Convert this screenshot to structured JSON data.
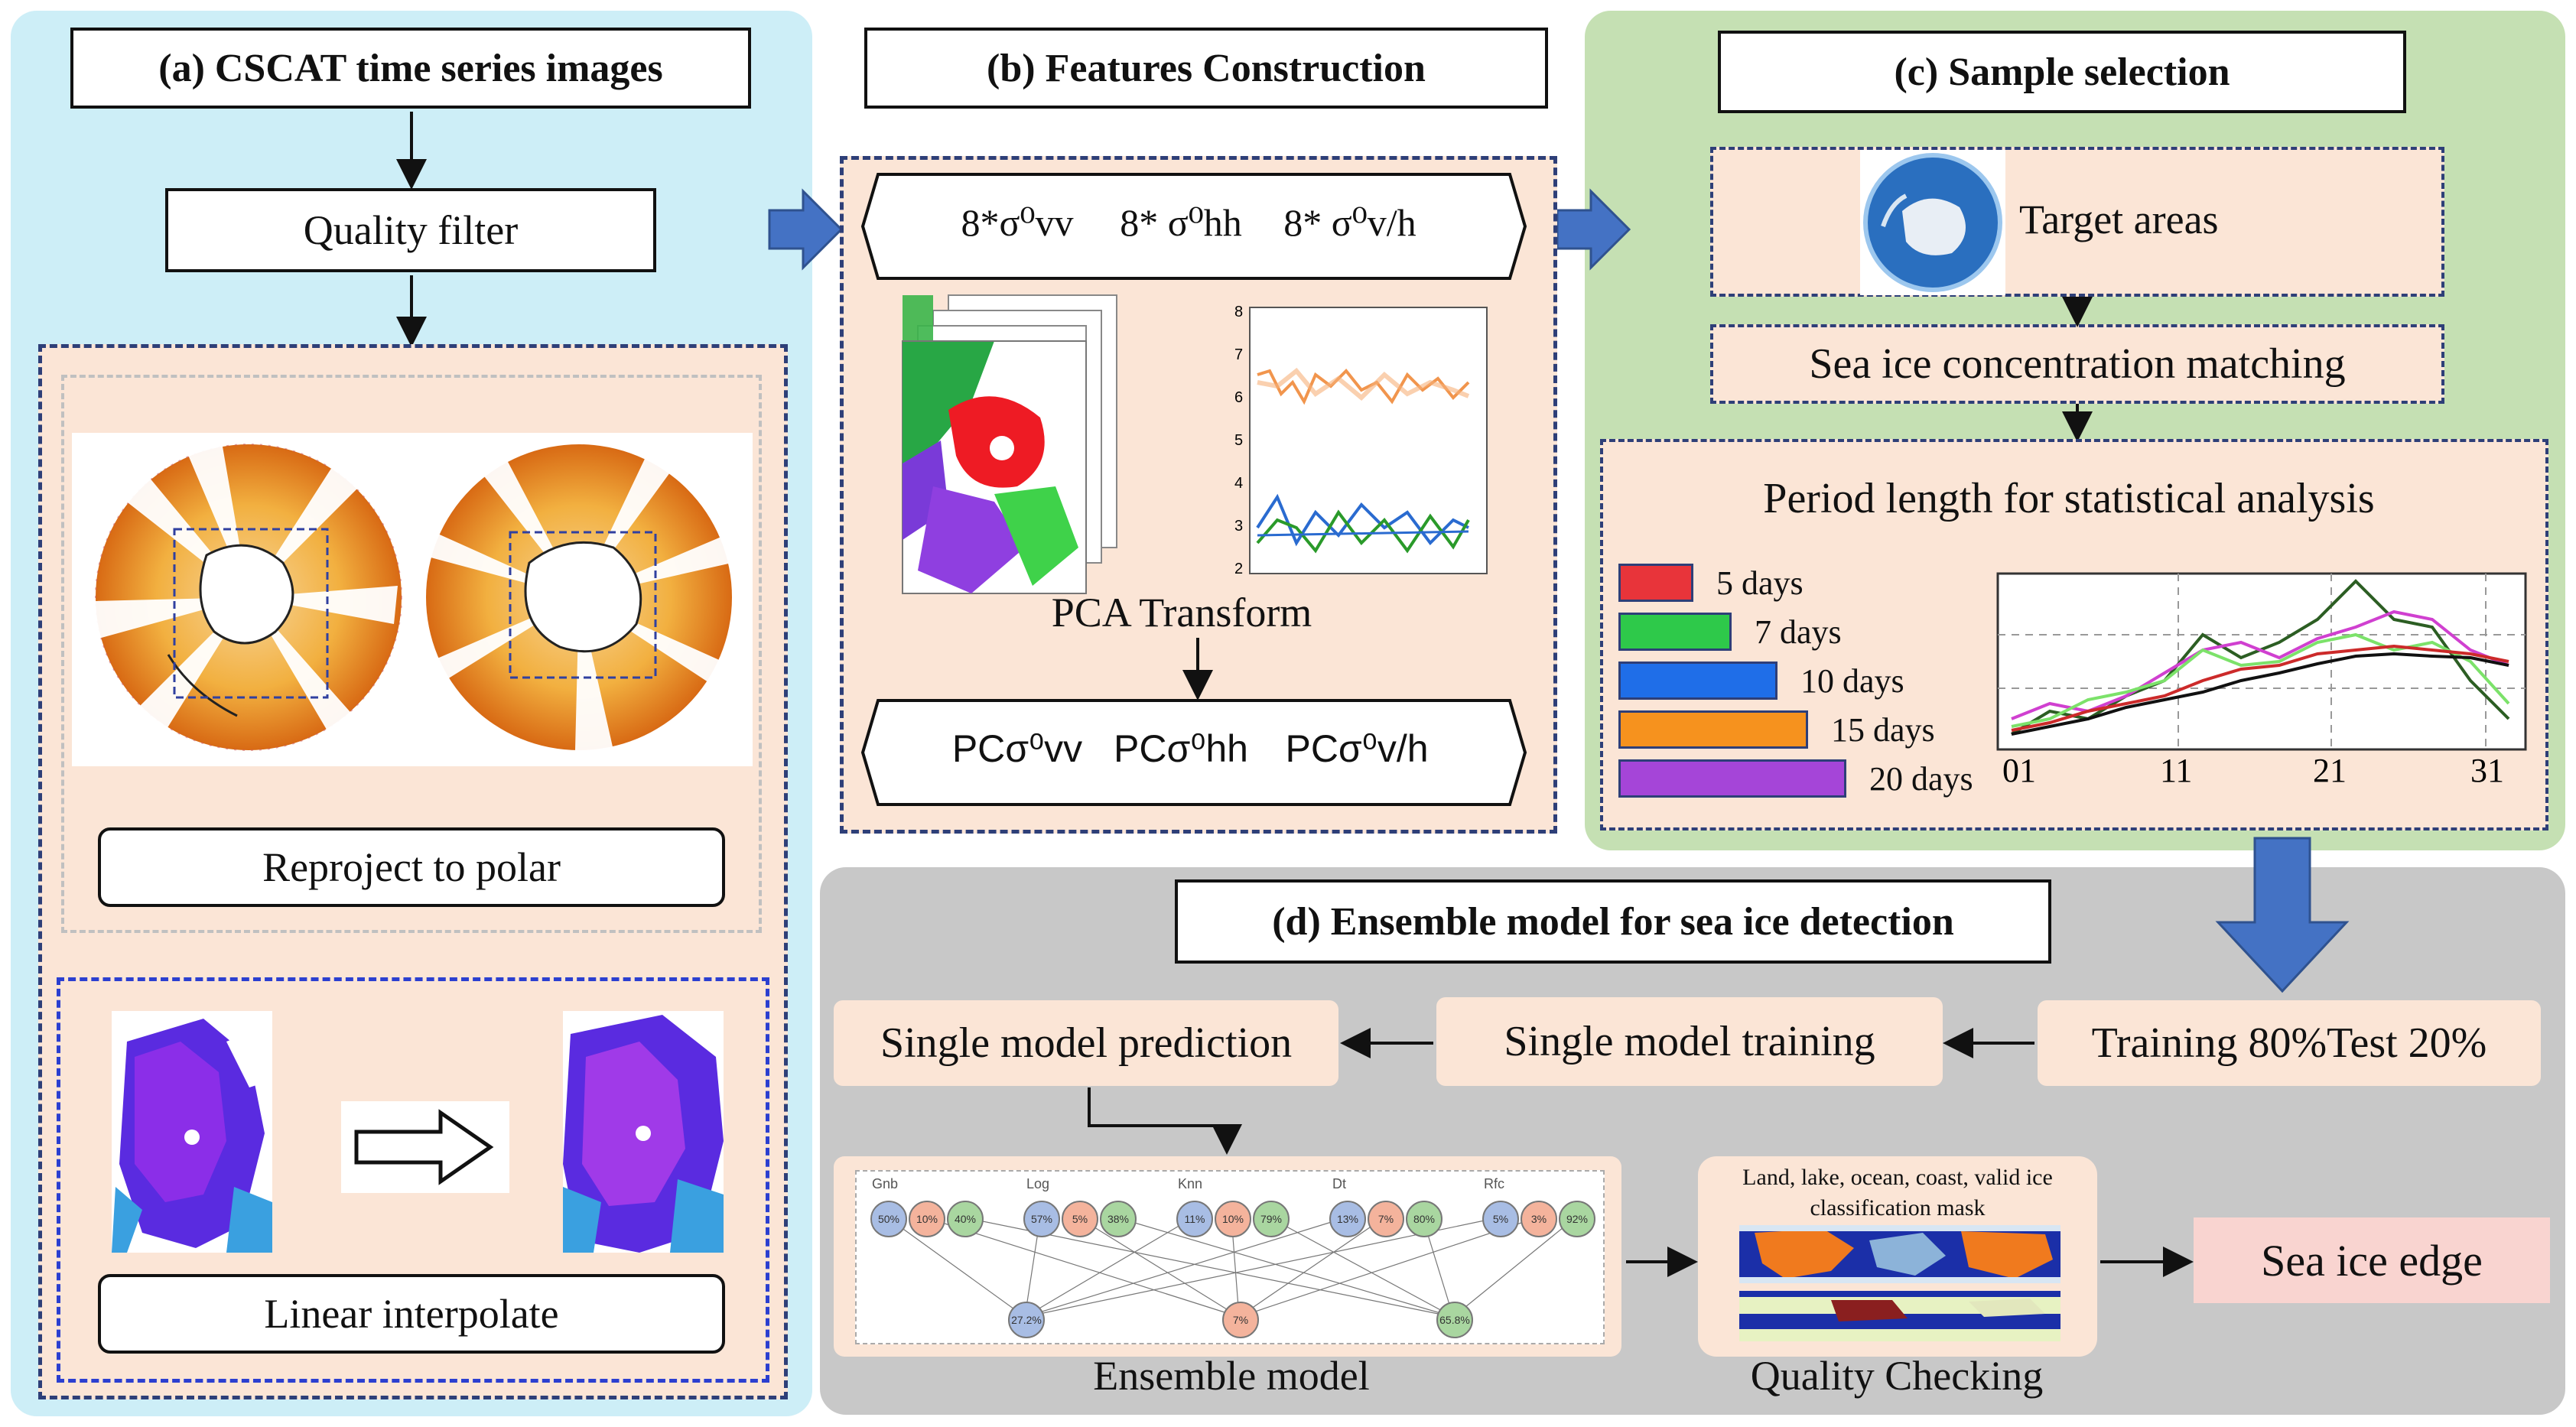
{
  "panel_a": {
    "title": "(a) CSCAT time series images",
    "quality_filter": "Quality filter",
    "reproject": "Reproject to polar",
    "linear_interp": "Linear interpolate"
  },
  "panel_b": {
    "title": "(b) Features Construction",
    "features_top": [
      "8*σ⁰vv",
      "8* σ⁰hh",
      "8* σ⁰v/h"
    ],
    "features_bottom": [
      "PCσ⁰vv",
      "PCσ⁰hh",
      "PCσ⁰v/h"
    ],
    "pca_label": "PCA Transform",
    "plot_yticks": [
      "8",
      "7",
      "6",
      "5",
      "4",
      "3",
      "2"
    ]
  },
  "panel_c": {
    "title": "(c) Sample selection",
    "target_areas": "Target areas",
    "sic_matching": "Sea ice concentration matching",
    "period_title": "Period length for statistical analysis",
    "legend": [
      {
        "label": "5 days",
        "color": "#e8343a"
      },
      {
        "label": "7 days",
        "color": "#2ec94a"
      },
      {
        "label": "10 days",
        "color": "#1f6ee8"
      },
      {
        "label": "15 days",
        "color": "#f6921e"
      },
      {
        "label": "20 days",
        "color": "#a545d8"
      }
    ],
    "x_ticks": [
      "01",
      "11",
      "21",
      "31"
    ]
  },
  "panel_d": {
    "title": "(d) Ensemble model for sea ice detection",
    "split": "Training 80%Test 20%",
    "training": "Single model training",
    "prediction": "Single model prediction",
    "ensemble_label": "Ensemble model",
    "qc_label": "Quality Checking",
    "mask_title": "Land, lake, ocean, coast, valid ice classification mask",
    "sea_ice_edge": "Sea ice edge",
    "models": [
      {
        "name": "Gnb",
        "probs": [
          "50%",
          "10%",
          "40%"
        ]
      },
      {
        "name": "Log",
        "probs": [
          "57%",
          "5%",
          "38%"
        ]
      },
      {
        "name": "Knn",
        "probs": [
          "11%",
          "10%",
          "79%"
        ]
      },
      {
        "name": "Dt",
        "probs": [
          "13%",
          "7%",
          "80%"
        ]
      },
      {
        "name": "Rfc",
        "probs": [
          "5%",
          "3%",
          "92%"
        ]
      }
    ],
    "outputs": [
      "27.2%",
      "7%",
      "65.8%"
    ]
  }
}
